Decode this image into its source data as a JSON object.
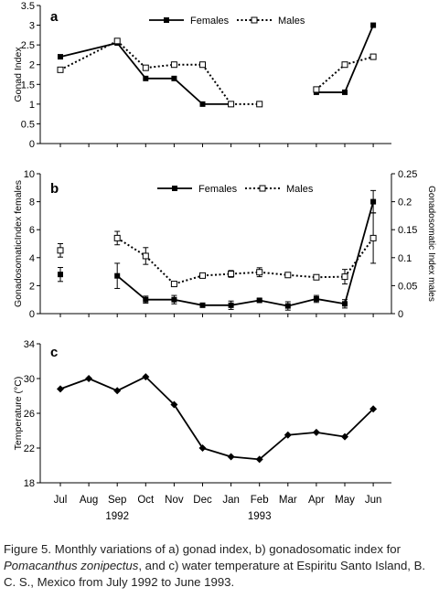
{
  "chart_data": [
    {
      "type": "line",
      "panel_label": "a",
      "ylabel": "Gonad Index",
      "ylim": [
        0,
        3.5
      ],
      "yticks": [
        "0",
        "0.5",
        "1",
        "1.5",
        "2",
        "2.5",
        "3",
        "3.5"
      ],
      "legend": [
        "Females",
        "Males"
      ],
      "series": [
        {
          "name": "Females",
          "color": "#000000",
          "marker": "filled-square",
          "line": "solid",
          "points": [
            {
              "month": "Jul",
              "y": 2.2,
              "connect": false
            },
            {
              "month": "Sep",
              "y": 2.55,
              "connect": true
            },
            {
              "month": "Oct",
              "y": 1.65,
              "connect": true
            },
            {
              "month": "Nov",
              "y": 1.65,
              "connect": true
            },
            {
              "month": "Dec",
              "y": 1.0,
              "connect": true
            },
            {
              "month": "Jan",
              "y": 1.0,
              "connect": true
            },
            {
              "month": "Apr",
              "y": 1.3,
              "connect": false
            },
            {
              "month": "May",
              "y": 1.3,
              "connect": true
            },
            {
              "month": "Jun",
              "y": 3.0,
              "connect": true
            }
          ]
        },
        {
          "name": "Males",
          "color": "#000000",
          "marker": "open-square",
          "line": "dotted",
          "points": [
            {
              "month": "Jul",
              "y": 1.87,
              "connect": false
            },
            {
              "month": "Sep",
              "y": 2.6,
              "connect": true
            },
            {
              "month": "Oct",
              "y": 1.92,
              "connect": true
            },
            {
              "month": "Nov",
              "y": 2.0,
              "connect": true
            },
            {
              "month": "Dec",
              "y": 2.0,
              "connect": true
            },
            {
              "month": "Jan",
              "y": 1.0,
              "connect": true
            },
            {
              "month": "Feb",
              "y": 1.0,
              "connect": true
            },
            {
              "month": "Apr",
              "y": 1.37,
              "connect": false
            },
            {
              "month": "May",
              "y": 2.0,
              "connect": true
            },
            {
              "month": "Jun",
              "y": 2.2,
              "connect": true
            }
          ]
        }
      ]
    },
    {
      "type": "line",
      "panel_label": "b",
      "ylabel": "GonadosomaticIndex females",
      "ylabel_right": "Gonadosomatic Index males",
      "ylim": [
        0,
        10
      ],
      "ylim_right": [
        0,
        0.25
      ],
      "yticks": [
        "0",
        "2",
        "4",
        "6",
        "8",
        "10"
      ],
      "yticks_right": [
        "0",
        "0.05",
        "0.1",
        "0.15",
        "0.2",
        "0.25"
      ],
      "legend": [
        "Females",
        "Males"
      ],
      "series": [
        {
          "name": "Females",
          "axis": "left",
          "color": "#000000",
          "marker": "filled-square",
          "line": "solid",
          "points": [
            {
              "month": "Jul",
              "y": 2.8,
              "err": 0.5,
              "connect": false
            },
            {
              "month": "Sep",
              "y": 2.7,
              "err": 0.9,
              "connect": false
            },
            {
              "month": "Oct",
              "y": 1.0,
              "err": 0.25,
              "connect": true
            },
            {
              "month": "Nov",
              "y": 1.0,
              "err": 0.3,
              "connect": true
            },
            {
              "month": "Dec",
              "y": 0.6,
              "err": 0.1,
              "connect": true
            },
            {
              "month": "Jan",
              "y": 0.6,
              "err": 0.3,
              "connect": true
            },
            {
              "month": "Feb",
              "y": 0.95,
              "err": 0.1,
              "connect": true
            },
            {
              "month": "Mar",
              "y": 0.55,
              "err": 0.3,
              "connect": true
            },
            {
              "month": "Apr",
              "y": 1.05,
              "err": 0.25,
              "connect": true
            },
            {
              "month": "May",
              "y": 0.7,
              "err": 0.3,
              "connect": true
            },
            {
              "month": "Jun",
              "y": 8.0,
              "err": 0.8,
              "connect": true
            }
          ]
        },
        {
          "name": "Males",
          "axis": "right",
          "color": "#000000",
          "marker": "open-square",
          "line": "dotted",
          "points": [
            {
              "month": "Jul",
              "y": 0.113,
              "err": 0.012,
              "connect": false
            },
            {
              "month": "Sep",
              "y": 0.135,
              "err": 0.012,
              "connect": false
            },
            {
              "month": "Oct",
              "y": 0.103,
              "err": 0.015,
              "connect": true
            },
            {
              "month": "Nov",
              "y": 0.053,
              "err": 0.004,
              "connect": true
            },
            {
              "month": "Dec",
              "y": 0.068,
              "err": 0.004,
              "connect": true
            },
            {
              "month": "Jan",
              "y": 0.071,
              "err": 0.006,
              "connect": true
            },
            {
              "month": "Feb",
              "y": 0.074,
              "err": 0.008,
              "connect": true
            },
            {
              "month": "Mar",
              "y": 0.069,
              "err": 0.004,
              "connect": true
            },
            {
              "month": "Apr",
              "y": 0.065,
              "err": 0.004,
              "connect": true
            },
            {
              "month": "May",
              "y": 0.066,
              "err": 0.013,
              "connect": true
            },
            {
              "month": "Jun",
              "y": 0.135,
              "err": 0.045,
              "connect": true
            }
          ]
        }
      ]
    },
    {
      "type": "line",
      "panel_label": "c",
      "ylabel": "Temperature (°C)",
      "ylim": [
        18,
        34
      ],
      "yticks": [
        "18",
        "22",
        "26",
        "30",
        "34"
      ],
      "series": [
        {
          "name": "",
          "color": "#000000",
          "marker": "filled-diamond",
          "line": "solid",
          "points": [
            {
              "month": "Jul",
              "y": 28.8,
              "connect": false
            },
            {
              "month": "Aug",
              "y": 30.0,
              "connect": true
            },
            {
              "month": "Sep",
              "y": 28.6,
              "connect": true
            },
            {
              "month": "Oct",
              "y": 30.2,
              "connect": true
            },
            {
              "month": "Nov",
              "y": 27.0,
              "connect": true
            },
            {
              "month": "Dec",
              "y": 22.0,
              "connect": true
            },
            {
              "month": "Jan",
              "y": 21.0,
              "connect": true
            },
            {
              "month": "Feb",
              "y": 20.7,
              "connect": true
            },
            {
              "month": "Mar",
              "y": 23.5,
              "connect": true
            },
            {
              "month": "Apr",
              "y": 23.8,
              "connect": true
            },
            {
              "month": "May",
              "y": 23.3,
              "connect": true
            },
            {
              "month": "Jun",
              "y": 26.5,
              "connect": true
            }
          ]
        }
      ]
    }
  ],
  "x_axis": {
    "months": [
      "Jul",
      "Aug",
      "Sep",
      "Oct",
      "Nov",
      "Dec",
      "Jan",
      "Feb",
      "Mar",
      "Apr",
      "May",
      "Jun"
    ],
    "years": [
      {
        "label": "1992",
        "under": "Sep"
      },
      {
        "label": "1993",
        "under": "Feb"
      }
    ]
  },
  "caption": {
    "part1": "Figure 5. Monthly variations of a) gonad index, b) gonadosomatic index for ",
    "species": "Pomacanthus zonipectus",
    "part2": ", and c) water temperature at Espiritu Santo Island, B. C. S., Mexico from July 1992 to June 1993."
  }
}
